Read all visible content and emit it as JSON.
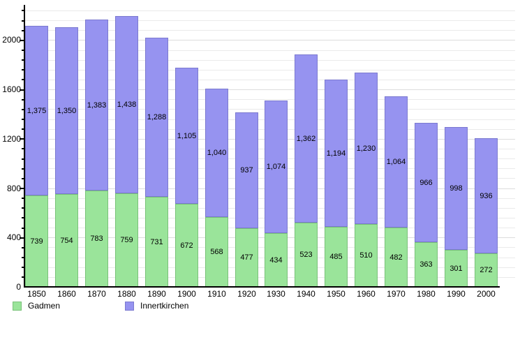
{
  "chart_data": {
    "type": "bar",
    "stacked": true,
    "title": "",
    "xlabel": "",
    "ylabel": "",
    "categories": [
      "1850",
      "1860",
      "1870",
      "1880",
      "1890",
      "1900",
      "1910",
      "1920",
      "1930",
      "1940",
      "1950",
      "1960",
      "1970",
      "1980",
      "1990",
      "2000"
    ],
    "series": [
      {
        "name": "Gadmen",
        "color": "#9ae49a",
        "border_color": "#79c279",
        "values": [
          739,
          754,
          783,
          759,
          731,
          672,
          568,
          477,
          434,
          523,
          485,
          510,
          482,
          363,
          301,
          272
        ]
      },
      {
        "name": "Innertkirchen",
        "color": "#9693f0",
        "border_color": "#7b79cf",
        "values": [
          1375,
          1350,
          1383,
          1438,
          1288,
          1105,
          1040,
          937,
          1074,
          1362,
          1194,
          1230,
          1064,
          966,
          998,
          936
        ]
      }
    ],
    "y_axis": {
      "tick_labels": [
        0,
        400,
        800,
        1200,
        1600,
        2000
      ],
      "minor_step": 80,
      "max": 2270
    },
    "grid": true,
    "legend_position": "bottom-left",
    "value_labels": "inside-segment, thousands comma format"
  }
}
